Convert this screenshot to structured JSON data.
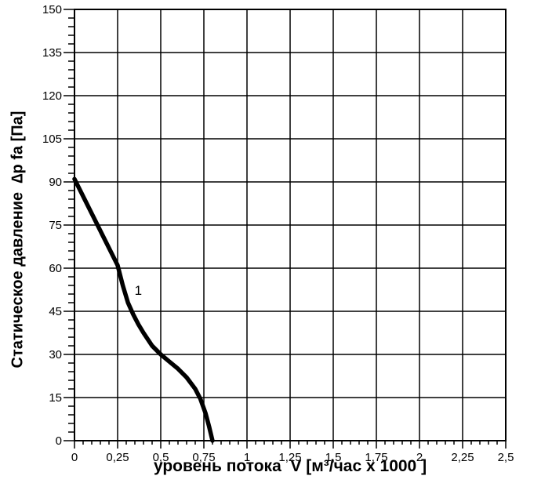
{
  "chart_data": {
    "type": "line",
    "title": "",
    "xlabel": "уровень потока  V [м³/час x 1000 ]",
    "ylabel": "Статическое давление  ∆p fa [Па]",
    "xlim": [
      0,
      2.5
    ],
    "ylim": [
      0,
      150
    ],
    "x_major_step": 0.25,
    "x_minor_step": 0.05,
    "y_major_step": 15,
    "y_minor_step": 3,
    "x_tick_labels": [
      "0",
      "0,25",
      "0,5",
      "0,75",
      "1",
      "1,25",
      "1,5",
      "1,75",
      "2",
      "2,25",
      "2,5"
    ],
    "y_tick_labels": [
      "0",
      "15",
      "30",
      "45",
      "60",
      "75",
      "90",
      "105",
      "120",
      "135",
      "150"
    ],
    "grid": "major-both",
    "legend": "none",
    "series": [
      {
        "name": "1",
        "label_position": {
          "x": 0.37,
          "y": 52
        },
        "color": "#000000",
        "x": [
          0,
          0.05,
          0.1,
          0.15,
          0.2,
          0.25,
          0.28,
          0.31,
          0.34,
          0.37,
          0.4,
          0.45,
          0.5,
          0.55,
          0.6,
          0.65,
          0.7,
          0.73,
          0.76,
          0.78,
          0.8
        ],
        "y": [
          91,
          85,
          79,
          73,
          67,
          61,
          54,
          48,
          44,
          40.5,
          37.5,
          33,
          30,
          27.5,
          25,
          22,
          18,
          14.5,
          9.5,
          5,
          0
        ]
      }
    ]
  },
  "colors": {
    "background": "#ffffff",
    "axis": "#000000",
    "grid": "#000000",
    "text": "#000000"
  }
}
